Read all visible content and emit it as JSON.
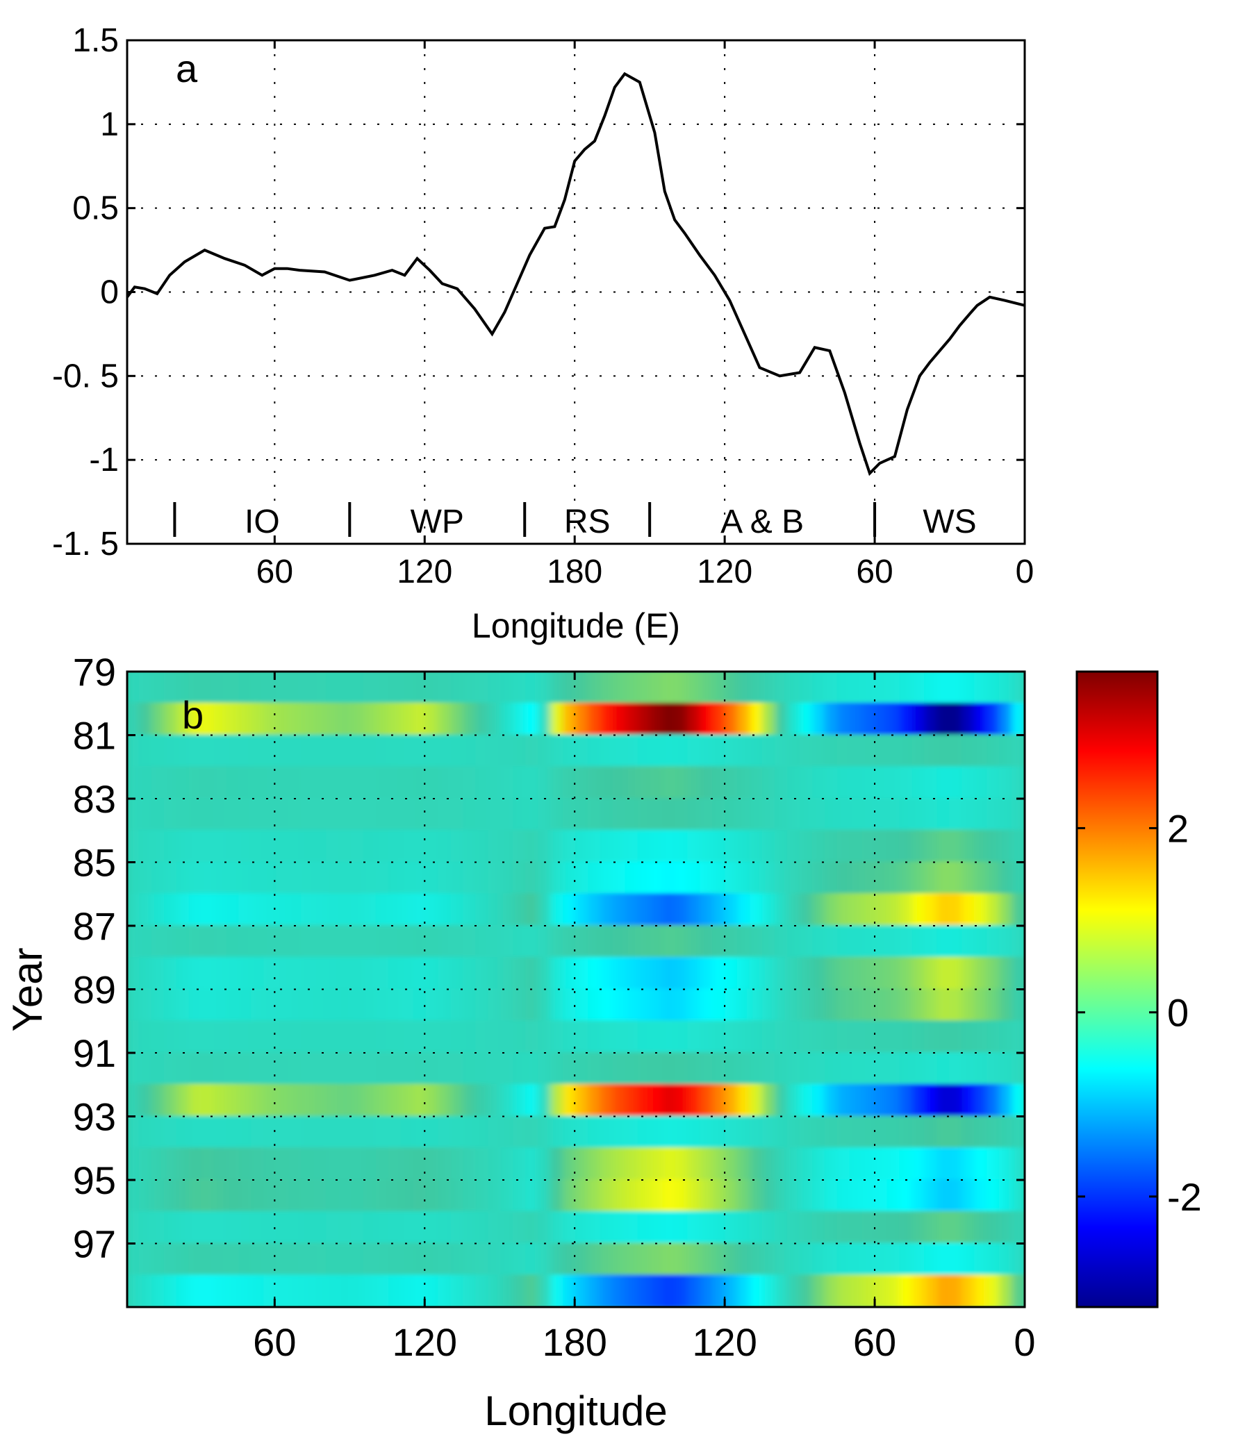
{
  "chart_data": [
    {
      "type": "line",
      "panel_label": "a",
      "xlabel": "Longitude (E)",
      "ylabel": "",
      "ylim": [
        -1.5,
        1.5
      ],
      "yticks": [
        "1.5",
        "1",
        "0.5",
        "0",
        "-0. 5",
        "-1",
        "-1. 5"
      ],
      "ytick_values": [
        1.5,
        1,
        0.5,
        0,
        -0.5,
        -1,
        -1.5
      ],
      "xticks": [
        "60",
        "120",
        "180",
        "120",
        "60",
        "0"
      ],
      "xtick_positions": [
        60,
        120,
        180,
        240,
        300,
        360
      ],
      "xlim": [
        1,
        360
      ],
      "grid": true,
      "regions": [
        {
          "label": "IO",
          "x": 55
        },
        {
          "label": "WP",
          "x": 125
        },
        {
          "label": "RS",
          "x": 185
        },
        {
          "label": "A & B",
          "x": 255
        },
        {
          "label": "WS",
          "x": 330
        }
      ],
      "region_dividers": [
        20,
        90,
        160,
        210,
        300
      ],
      "series": [
        {
          "x": [
            1,
            4,
            8,
            13,
            18,
            24,
            32,
            40,
            48,
            55,
            60,
            65,
            70,
            80,
            90,
            100,
            107,
            112,
            117,
            122,
            127,
            133,
            140,
            147,
            152,
            157,
            162,
            168,
            172,
            176,
            180,
            184,
            188,
            192,
            196,
            200,
            206,
            212,
            216,
            220,
            224,
            230,
            236,
            242,
            248,
            254,
            262,
            270,
            276,
            282,
            288,
            294,
            298,
            302,
            308,
            313,
            318,
            322,
            326,
            330,
            334,
            338,
            341,
            346,
            352,
            360
          ],
          "y": [
            -0.03,
            0.03,
            0.02,
            -0.01,
            0.1,
            0.18,
            0.25,
            0.2,
            0.16,
            0.1,
            0.14,
            0.14,
            0.13,
            0.12,
            0.07,
            0.1,
            0.13,
            0.1,
            0.2,
            0.13,
            0.05,
            0.02,
            -0.1,
            -0.25,
            -0.12,
            0.05,
            0.22,
            0.38,
            0.39,
            0.55,
            0.78,
            0.85,
            0.9,
            1.05,
            1.22,
            1.3,
            1.25,
            0.95,
            0.6,
            0.43,
            0.35,
            0.22,
            0.1,
            -0.05,
            -0.25,
            -0.45,
            -0.5,
            -0.48,
            -0.33,
            -0.35,
            -0.6,
            -0.9,
            -1.08,
            -1.02,
            -0.98,
            -0.7,
            -0.5,
            -0.42,
            -0.35,
            -0.28,
            -0.2,
            -0.13,
            -0.08,
            -0.03,
            -0.05,
            -0.08
          ]
        }
      ]
    },
    {
      "type": "heatmap",
      "panel_label": "b",
      "xlabel": "Longitude",
      "ylabel": "Year",
      "xticks": [
        "60",
        "120",
        "180",
        "120",
        "60",
        "0"
      ],
      "xtick_positions": [
        60,
        120,
        180,
        240,
        300,
        360
      ],
      "xlim": [
        1,
        360
      ],
      "yticks": [
        "79",
        "81",
        "83",
        "85",
        "87",
        "89",
        "91",
        "93",
        "95",
        "97"
      ],
      "ytick_values": [
        79,
        81,
        83,
        85,
        87,
        89,
        91,
        93,
        95,
        97
      ],
      "ylim": [
        79,
        99
      ],
      "grid": true,
      "colorbar": {
        "ticks": [
          "2",
          "0",
          "-2"
        ],
        "tick_values": [
          2,
          0,
          -2
        ],
        "range": [
          -3.2,
          3.7
        ]
      },
      "colormap": "jet",
      "years": [
        79.5,
        80.5,
        81.5,
        82.5,
        83.5,
        84.5,
        85.5,
        86.5,
        87.5,
        88.5,
        89.5,
        90.5,
        91.5,
        92.5,
        93.5,
        94.5,
        95.5,
        96.5,
        97.5,
        98.5
      ],
      "anomalies": [
        0.5,
        3.5,
        -0.2,
        0.3,
        0.2,
        -0.4,
        -0.6,
        -1.5,
        0.3,
        -0.9,
        -0.8,
        -0.2,
        0.2,
        2.8,
        -0.3,
        0.9,
        1.0,
        -0.4,
        0.5,
        -1.8
      ],
      "pattern_x": [
        1,
        30,
        60,
        90,
        120,
        150,
        165,
        175,
        195,
        220,
        245,
        265,
        285,
        310,
        330,
        350,
        360
      ],
      "pattern_values": [
        0.0,
        0.3,
        0.2,
        0.15,
        0.25,
        0.0,
        -0.2,
        0.4,
        0.8,
        1.1,
        0.55,
        0.0,
        -0.4,
        -0.55,
        -1.0,
        -0.5,
        -0.1
      ]
    }
  ]
}
